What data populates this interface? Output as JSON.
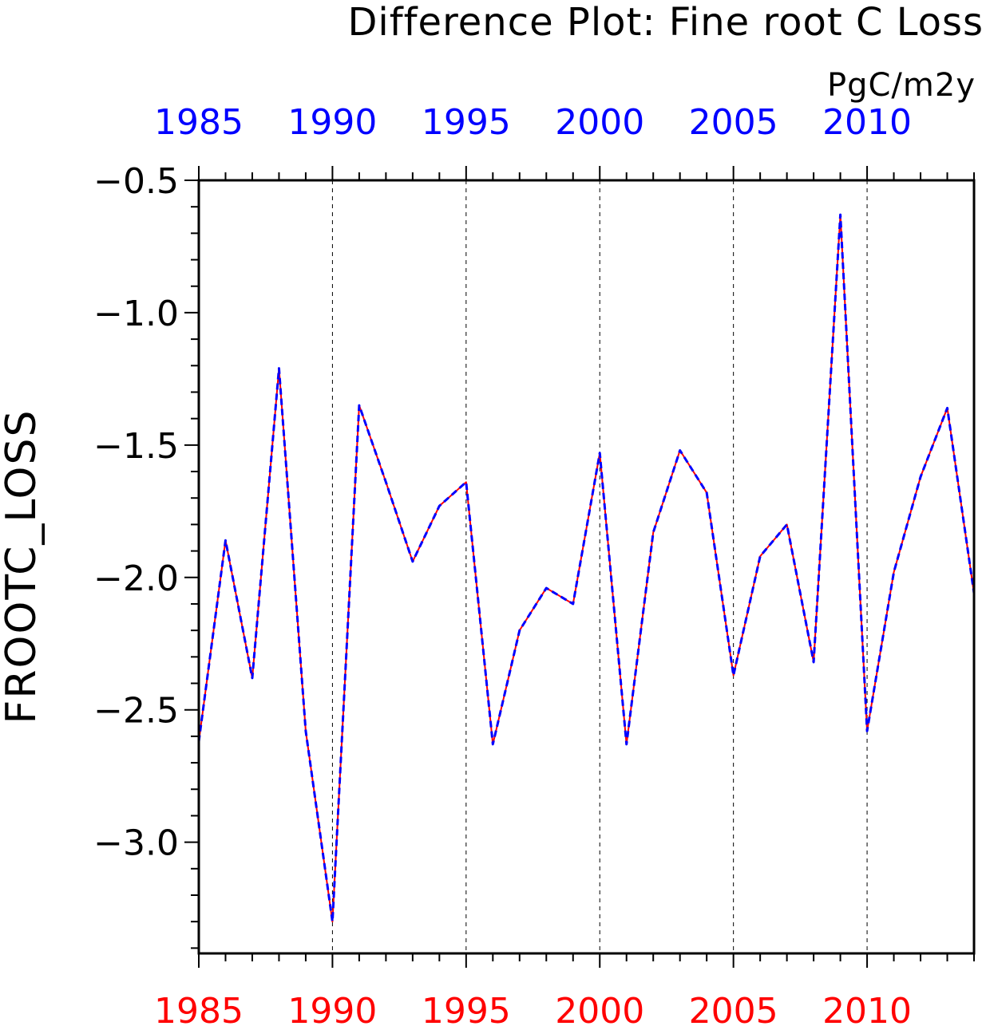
{
  "chart_data": {
    "type": "line",
    "title": "Difference Plot: Fine root C Loss",
    "units": "PgC/m2y",
    "ylabel": "FROOTC_LOSS",
    "xlabel": "",
    "x": [
      1985,
      1986,
      1987,
      1988,
      1989,
      1990,
      1991,
      1992,
      1993,
      1994,
      1995,
      1996,
      1997,
      1998,
      1999,
      2000,
      2001,
      2002,
      2003,
      2004,
      2005,
      2006,
      2007,
      2008,
      2009,
      2010,
      2011,
      2012,
      2013,
      2014
    ],
    "xlim": [
      1985,
      2014
    ],
    "ylim": [
      -3.42,
      -0.5
    ],
    "x_ticks": [
      1985,
      1990,
      1995,
      2000,
      2005,
      2010
    ],
    "x_tick_labels": [
      "1985",
      "1990",
      "1995",
      "2000",
      "2005",
      "2010"
    ],
    "y_ticks": [
      -0.5,
      -1.0,
      -1.5,
      -2.0,
      -2.5,
      -3.0
    ],
    "y_tick_labels": [
      "−0.5",
      "−1.0",
      "−1.5",
      "−2.0",
      "−2.5",
      "−3.0"
    ],
    "grid": "vertical dashed at major x ticks",
    "series": [
      {
        "color": "#ff0000",
        "style": "solid",
        "values": [
          -2.62,
          -1.86,
          -2.38,
          -1.21,
          -2.58,
          -3.3,
          -1.35,
          -1.64,
          -1.94,
          -1.73,
          -1.64,
          -2.63,
          -2.2,
          -2.04,
          -2.1,
          -1.53,
          -2.63,
          -1.83,
          -1.52,
          -1.68,
          -2.37,
          -1.92,
          -1.8,
          -2.32,
          -0.63,
          -2.58,
          -1.98,
          -1.62,
          -1.36,
          -2.06
        ]
      },
      {
        "color": "#0000ff",
        "style": "dashed",
        "values": [
          -2.62,
          -1.86,
          -2.38,
          -1.21,
          -2.58,
          -3.3,
          -1.35,
          -1.64,
          -1.94,
          -1.73,
          -1.64,
          -2.63,
          -2.2,
          -2.04,
          -2.1,
          -1.53,
          -2.63,
          -1.83,
          -1.52,
          -1.68,
          -2.37,
          -1.92,
          -1.8,
          -2.32,
          -0.63,
          -2.58,
          -1.98,
          -1.62,
          -1.36,
          -2.06
        ]
      }
    ],
    "top_axis_color": "#0000ff",
    "bottom_axis_color": "#ff0000"
  }
}
